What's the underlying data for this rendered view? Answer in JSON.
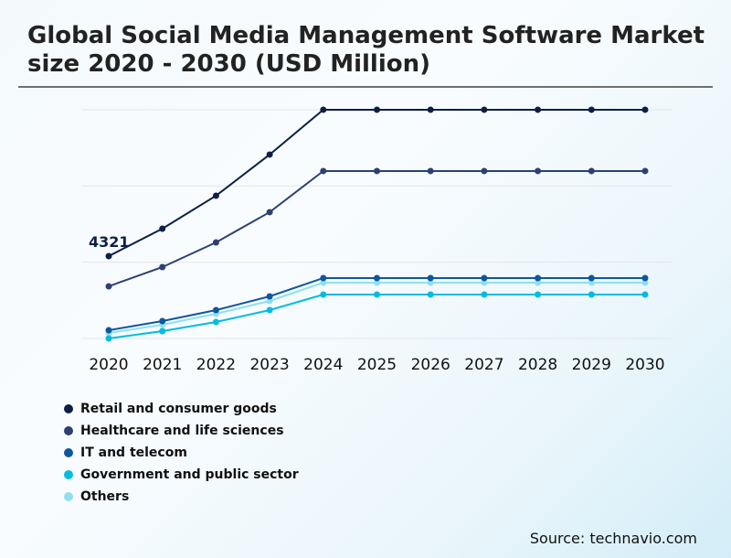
{
  "title": "Global Social Media Management Software Market size 2020 - 2030 (USD Million)",
  "source": "Source: technavio.com",
  "chart_data": {
    "type": "line",
    "title": "Global Social Media Management Software Market size 2020 - 2030 (USD Million)",
    "xlabel": "",
    "ylabel": "",
    "categories": [
      "2020",
      "2021",
      "2022",
      "2023",
      "2024",
      "2025",
      "2026",
      "2027",
      "2028",
      "2029",
      "2030"
    ],
    "ylim": [
      0,
      12000
    ],
    "grid": true,
    "legend": "bottom-left",
    "annotations": [
      {
        "series": "Retail and consumer goods",
        "x": "2020",
        "text": "4321"
      }
    ],
    "series": [
      {
        "name": "Retail and consumer goods",
        "color": "#0d1f45",
        "values": [
          4321,
          5761,
          7490,
          9650,
          12003,
          12003,
          12003,
          12003,
          12003,
          12003,
          12003
        ]
      },
      {
        "name": "Healthcare and life sciences",
        "color": "#2e3f73",
        "values": [
          2737,
          3745,
          5041,
          6626,
          8786,
          8786,
          8786,
          8786,
          8786,
          8786,
          8786
        ]
      },
      {
        "name": "IT and telecom",
        "color": "#0d57a0",
        "values": [
          432,
          912,
          1488,
          2208,
          3169,
          3169,
          3169,
          3169,
          3169,
          3169,
          3169
        ]
      },
      {
        "name": "Government and public sector",
        "color": "#00bde0",
        "values": [
          0,
          384,
          864,
          1488,
          2304,
          2304,
          2304,
          2304,
          2304,
          2304,
          2304
        ]
      },
      {
        "name": "Others",
        "color": "#8ee0ef",
        "values": [
          288,
          720,
          1296,
          1968,
          2929,
          2929,
          2929,
          2929,
          2929,
          2929,
          2929
        ]
      }
    ]
  }
}
